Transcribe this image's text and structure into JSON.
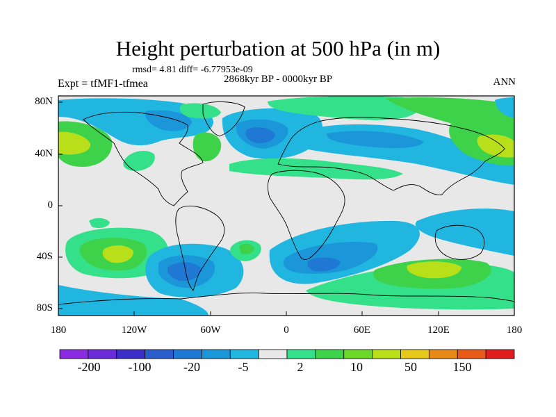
{
  "title": "Height perturbation at 500 hPa (in m)",
  "stats": "rmsd= 4.81 diff= -6.77953e-09",
  "period": "2868kyr BP - 0000kyr BP",
  "experiment": "Expt = tfMF1-tfmea",
  "season": "ANN",
  "lat_labels": [
    "80N",
    "40N",
    "0",
    "40S",
    "80S"
  ],
  "lon_labels": [
    "180",
    "120W",
    "60W",
    "0",
    "60E",
    "120E",
    "180"
  ],
  "colorbar": {
    "colors": [
      "#8a2be2",
      "#6a2bd8",
      "#3d2ec7",
      "#2a5ccc",
      "#1f78d4",
      "#1a96d9",
      "#21b6e0",
      "#e8e8e8",
      "#34e08a",
      "#3ed14a",
      "#6bd82a",
      "#b9df1a",
      "#e6c81a",
      "#e88a1a",
      "#e85a1a",
      "#e01e1e"
    ],
    "tick_labels": [
      "-200",
      "-100",
      "-20",
      "-5",
      "2",
      "10",
      "50",
      "150"
    ]
  },
  "map_colors": {
    "neutral": "#e8e8e8",
    "neg_weak": "#21b6e0",
    "neg_mid": "#1a96d9",
    "neg_strong": "#1f78d4",
    "pos_weak": "#34e08a",
    "pos_mid": "#3ed14a",
    "pos_strong": "#b9df1a"
  }
}
